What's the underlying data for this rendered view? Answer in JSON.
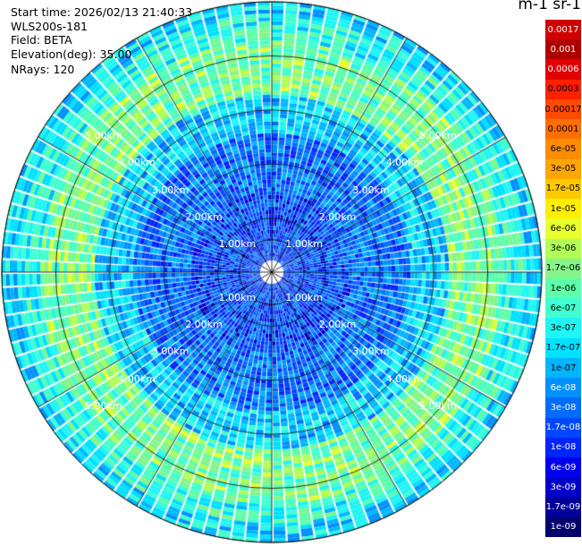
{
  "info": {
    "start_time": "Start time: 2026/02/13 21:40:33",
    "instrument": "WLS200s-181",
    "field": "Field: BETA",
    "elevation": "Elevation(deg): 35.00",
    "nrays": "NRays: 120"
  },
  "unit_label": "m-1 sr-1",
  "range_labels": [
    "1.00km",
    "2.00km",
    "3.00km",
    "4.00km",
    "5.00km"
  ],
  "range_rings_km": [
    1,
    2,
    3,
    4,
    5
  ],
  "max_range_km": 5.0,
  "colorbar": {
    "ticks": [
      "0.0017",
      "0.001",
      "0.0006",
      "0.0003",
      "0.00017",
      "0.0001",
      "6e-05",
      "3e-05",
      "1.7e-05",
      "1e-05",
      "6e-06",
      "3e-06",
      "1.7e-06",
      "1e-06",
      "6e-07",
      "3e-07",
      "1.7e-07",
      "1e-07",
      "6e-08",
      "3e-08",
      "1.7e-08",
      "1e-08",
      "6e-09",
      "3e-09",
      "1.7e-09",
      "1e-09"
    ],
    "colors": [
      "#d00000",
      "#b00000",
      "#e00000",
      "#ff2000",
      "#ff4a00",
      "#ff6e00",
      "#ff8c00",
      "#ffa500",
      "#ffc800",
      "#ffee00",
      "#e8ff2a",
      "#b0ff55",
      "#85f58a",
      "#5dffa8",
      "#40ffd0",
      "#20f4f4",
      "#00e0ff",
      "#00b6ff",
      "#0090ff",
      "#006cff",
      "#0048ff",
      "#0024ff",
      "#0000f0",
      "#0000c8",
      "#00009a",
      "#00006e"
    ]
  }
}
